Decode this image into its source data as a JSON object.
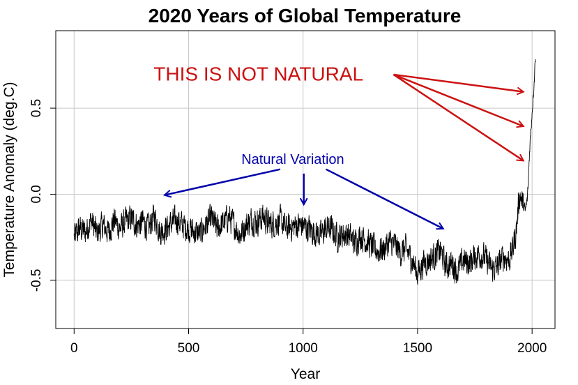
{
  "chart_data": {
    "type": "line",
    "title": "2020 Years of Global Temperature",
    "xlabel": "Year",
    "ylabel": "Temperature Anomaly (deg.C)",
    "xlim": [
      -80,
      2100
    ],
    "ylim": [
      -0.78,
      0.95
    ],
    "xticks": [
      0,
      500,
      1000,
      1500,
      2000
    ],
    "xtick_labels": [
      "0",
      "500",
      "1000",
      "1500",
      "2000"
    ],
    "yticks": [
      -0.5,
      0.0,
      0.5
    ],
    "ytick_labels": [
      "-0.5",
      "0.0",
      "0.5"
    ],
    "grid": true,
    "line_color": "#000000",
    "series": [
      {
        "x": [
          0,
          25,
          50,
          75,
          100,
          125,
          150,
          175,
          200,
          225,
          250,
          275,
          300,
          325,
          350,
          375,
          400,
          425,
          450,
          475,
          500,
          525,
          550,
          575,
          600,
          625,
          650,
          675,
          700,
          725,
          750,
          775,
          800,
          825,
          850,
          875,
          900,
          925,
          950,
          975,
          1000,
          1025,
          1050,
          1075,
          1100,
          1125,
          1150,
          1175,
          1200,
          1225,
          1250,
          1275,
          1300,
          1325,
          1350,
          1375,
          1400,
          1425,
          1450,
          1475,
          1500,
          1525,
          1550,
          1575,
          1600,
          1625,
          1650,
          1675,
          1700,
          1725,
          1750,
          1775,
          1800,
          1825,
          1850,
          1875,
          1900,
          1915,
          1930,
          1945,
          1960,
          1970,
          1980,
          1990,
          2000,
          2010,
          2015
        ],
        "values": [
          -0.25,
          -0.2,
          -0.22,
          -0.15,
          -0.23,
          -0.18,
          -0.22,
          -0.15,
          -0.2,
          -0.16,
          -0.14,
          -0.18,
          -0.16,
          -0.2,
          -0.12,
          -0.22,
          -0.2,
          -0.17,
          -0.15,
          -0.18,
          -0.2,
          -0.22,
          -0.23,
          -0.18,
          -0.14,
          -0.2,
          -0.17,
          -0.13,
          -0.18,
          -0.24,
          -0.18,
          -0.15,
          -0.16,
          -0.13,
          -0.17,
          -0.17,
          -0.15,
          -0.2,
          -0.19,
          -0.18,
          -0.18,
          -0.2,
          -0.22,
          -0.24,
          -0.2,
          -0.2,
          -0.25,
          -0.23,
          -0.24,
          -0.28,
          -0.24,
          -0.27,
          -0.3,
          -0.33,
          -0.32,
          -0.28,
          -0.29,
          -0.34,
          -0.32,
          -0.38,
          -0.46,
          -0.4,
          -0.38,
          -0.36,
          -0.33,
          -0.42,
          -0.4,
          -0.45,
          -0.38,
          -0.4,
          -0.36,
          -0.35,
          -0.38,
          -0.44,
          -0.42,
          -0.36,
          -0.38,
          -0.32,
          -0.22,
          0.0,
          -0.05,
          -0.1,
          -0.02,
          0.28,
          0.48,
          0.68,
          0.82
        ],
        "jitter": 0.055
      }
    ],
    "annotations": [
      {
        "text": "THIS IS NOT NATURAL",
        "x": 805,
        "y": 0.7,
        "color": "#cc1111",
        "arrows": [
          {
            "from": [
              1395,
              0.695
            ],
            "to": [
              1962,
              0.595
            ]
          },
          {
            "from": [
              1395,
              0.695
            ],
            "to": [
              1962,
              0.395
            ]
          },
          {
            "from": [
              1395,
              0.695
            ],
            "to": [
              1962,
              0.195
            ]
          }
        ]
      },
      {
        "text": "Natural Variation",
        "x": 955,
        "y": 0.205,
        "color": "#0000aa",
        "arrows": [
          {
            "from": [
              900,
              0.145
            ],
            "to": [
              395,
              -0.005
            ]
          },
          {
            "from": [
              1003,
              0.12
            ],
            "to": [
              1003,
              -0.06
            ]
          },
          {
            "from": [
              1100,
              0.145
            ],
            "to": [
              1612,
              -0.2
            ]
          }
        ]
      }
    ]
  }
}
